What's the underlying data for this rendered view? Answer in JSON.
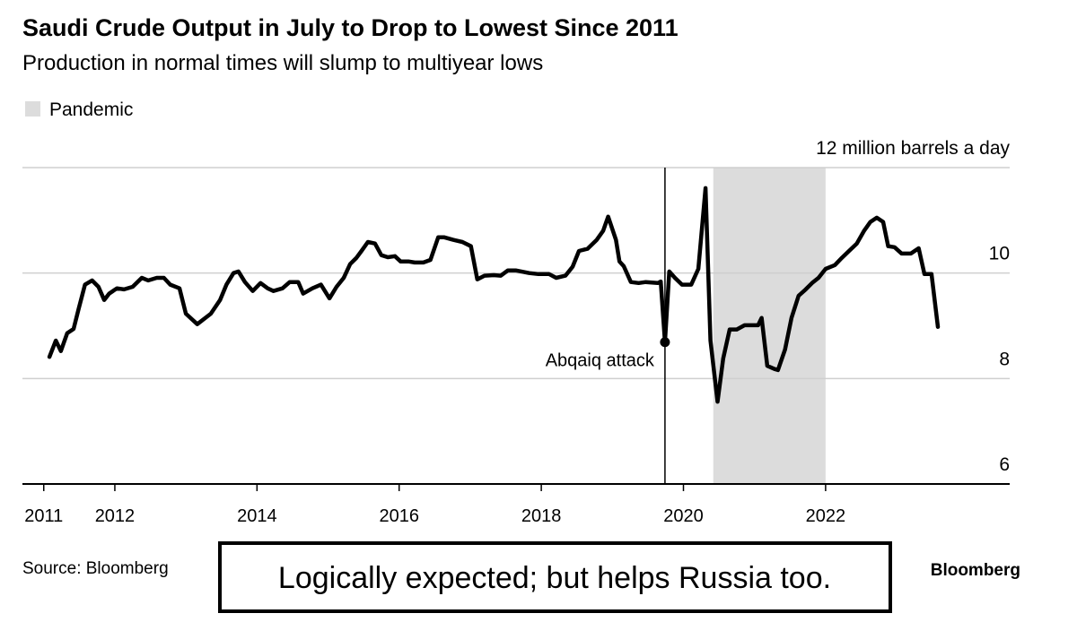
{
  "chart_data": {
    "type": "line",
    "title": "Saudi Crude Output in July to Drop to Lowest Since 2011",
    "subtitle": "Production in normal times will slump to multiyear lows",
    "source": "Source: Bloomberg",
    "brand": "Bloomberg",
    "color": "#000000",
    "x": [
      2011.08,
      2011.17,
      2011.24,
      2011.33,
      2011.42,
      2011.49,
      2011.58,
      2011.68,
      2011.77,
      2011.85,
      2011.92,
      2012.03,
      2012.13,
      2012.25,
      2012.38,
      2012.47,
      2012.59,
      2012.69,
      2012.78,
      2012.91,
      2013.0,
      2013.16,
      2013.35,
      2013.48,
      2013.57,
      2013.67,
      2013.74,
      2013.83,
      2013.94,
      2014.05,
      2014.15,
      2014.23,
      2014.36,
      2014.46,
      2014.58,
      2014.65,
      2014.78,
      2014.9,
      2015.02,
      2015.12,
      2015.22,
      2015.31,
      2015.4,
      2015.47,
      2015.56,
      2015.66,
      2015.75,
      2015.84,
      2015.94,
      2016.02,
      2016.13,
      2016.22,
      2016.34,
      2016.44,
      2016.55,
      2016.63,
      2016.76,
      2016.89,
      2017.01,
      2017.1,
      2017.2,
      2017.33,
      2017.43,
      2017.53,
      2017.64,
      2017.83,
      2017.96,
      2018.11,
      2018.21,
      2018.34,
      2018.44,
      2018.53,
      2018.65,
      2018.78,
      2018.87,
      2018.94,
      2019.05,
      2019.1,
      2019.16,
      2019.26,
      2019.37,
      2019.47,
      2019.64,
      2019.68,
      2019.74,
      2019.8,
      2019.88,
      2019.98,
      2020.11,
      2020.21,
      2020.31,
      2020.38,
      2020.48,
      2020.56,
      2020.65,
      2020.75,
      2020.86,
      2020.96,
      2021.05,
      2021.1,
      2021.18,
      2021.28,
      2021.33,
      2021.43,
      2021.52,
      2021.62,
      2021.72,
      2021.81,
      2021.9,
      2022.0,
      2022.13,
      2022.23,
      2022.33,
      2022.44,
      2022.54,
      2022.63,
      2022.72,
      2022.81,
      2022.88,
      2022.97,
      2023.07,
      2023.2,
      2023.31,
      2023.39,
      2023.49,
      2023.58
    ],
    "values": [
      8.41,
      8.72,
      8.52,
      8.86,
      8.94,
      9.32,
      9.78,
      9.86,
      9.74,
      9.49,
      9.61,
      9.71,
      9.69,
      9.74,
      9.91,
      9.86,
      9.91,
      9.91,
      9.78,
      9.71,
      9.23,
      9.03,
      9.23,
      9.49,
      9.78,
      10.0,
      10.03,
      9.83,
      9.66,
      9.81,
      9.71,
      9.66,
      9.71,
      9.83,
      9.83,
      9.61,
      9.71,
      9.78,
      9.52,
      9.74,
      9.91,
      10.17,
      10.29,
      10.42,
      10.59,
      10.56,
      10.34,
      10.3,
      10.32,
      10.22,
      10.22,
      10.2,
      10.2,
      10.25,
      10.68,
      10.68,
      10.63,
      10.59,
      10.51,
      9.88,
      9.95,
      9.96,
      9.95,
      10.05,
      10.05,
      10.0,
      9.98,
      9.98,
      9.91,
      9.95,
      10.12,
      10.42,
      10.46,
      10.63,
      10.8,
      11.07,
      10.63,
      10.22,
      10.13,
      9.83,
      9.81,
      9.83,
      9.81,
      9.84,
      8.69,
      10.03,
      9.91,
      9.78,
      9.78,
      10.08,
      11.61,
      8.72,
      7.56,
      8.38,
      8.93,
      8.93,
      9.01,
      9.01,
      9.01,
      9.15,
      8.24,
      8.18,
      8.16,
      8.55,
      9.15,
      9.57,
      9.69,
      9.81,
      9.91,
      10.08,
      10.15,
      10.29,
      10.42,
      10.56,
      10.8,
      10.97,
      11.05,
      10.97,
      10.51,
      10.49,
      10.37,
      10.37,
      10.47,
      9.98,
      9.98,
      8.98
    ],
    "xlim": [
      2010.7,
      2024.59
    ],
    "xticks": [
      2011,
      2012,
      2014,
      2016,
      2018,
      2020,
      2022
    ],
    "ylim": [
      6,
      12
    ],
    "yticks": [
      6,
      8,
      10,
      {
        "value": 12,
        "label": "12 million barrels a day"
      }
    ],
    "grid": true,
    "legend": "top-left",
    "shaded_regions": [
      {
        "name": "Pandemic",
        "x": [
          2020.42,
          2022.0
        ],
        "color": "#dcdcdc"
      }
    ],
    "annotations": [
      {
        "text": "Abqaiq attack",
        "x": 2019.74,
        "y": 8.69
      }
    ]
  },
  "caption": "Logically expected; but helps Russia too."
}
